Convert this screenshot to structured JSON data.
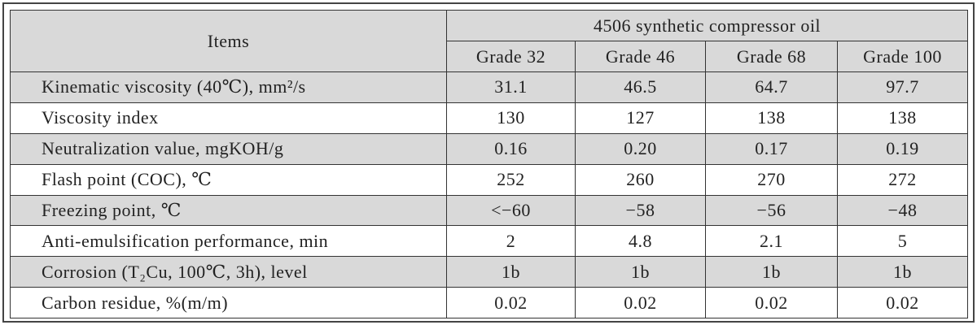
{
  "table": {
    "header": {
      "items": "Items",
      "group": "4506 synthetic compressor oil",
      "grades": [
        "Grade 32",
        "Grade 46",
        "Grade 68",
        "Grade 100"
      ]
    },
    "rows": [
      [
        "Kinematic viscosity (40℃), mm²/s",
        "31.1",
        "46.5",
        "64.7",
        "97.7"
      ],
      [
        "Viscosity index",
        "130",
        "127",
        "138",
        "138"
      ],
      [
        "Neutralization value, mgKOH/g",
        "0.16",
        "0.20",
        "0.17",
        "0.19"
      ],
      [
        "Flash point (COC), ℃",
        "252",
        "260",
        "270",
        "272"
      ],
      [
        "Freezing point, ℃",
        "<−60",
        "−58",
        "−56",
        "−48"
      ],
      [
        "Anti-emulsification performance, min",
        "2",
        "4.8",
        "2.1",
        "5"
      ],
      [
        "Corrosion (T₂Cu, 100℃, 3h), level",
        "1b",
        "1b",
        "1b",
        "1b"
      ],
      [
        "Carbon residue, %(m/m)",
        "0.02",
        "0.02",
        "0.02",
        "0.02"
      ]
    ]
  }
}
